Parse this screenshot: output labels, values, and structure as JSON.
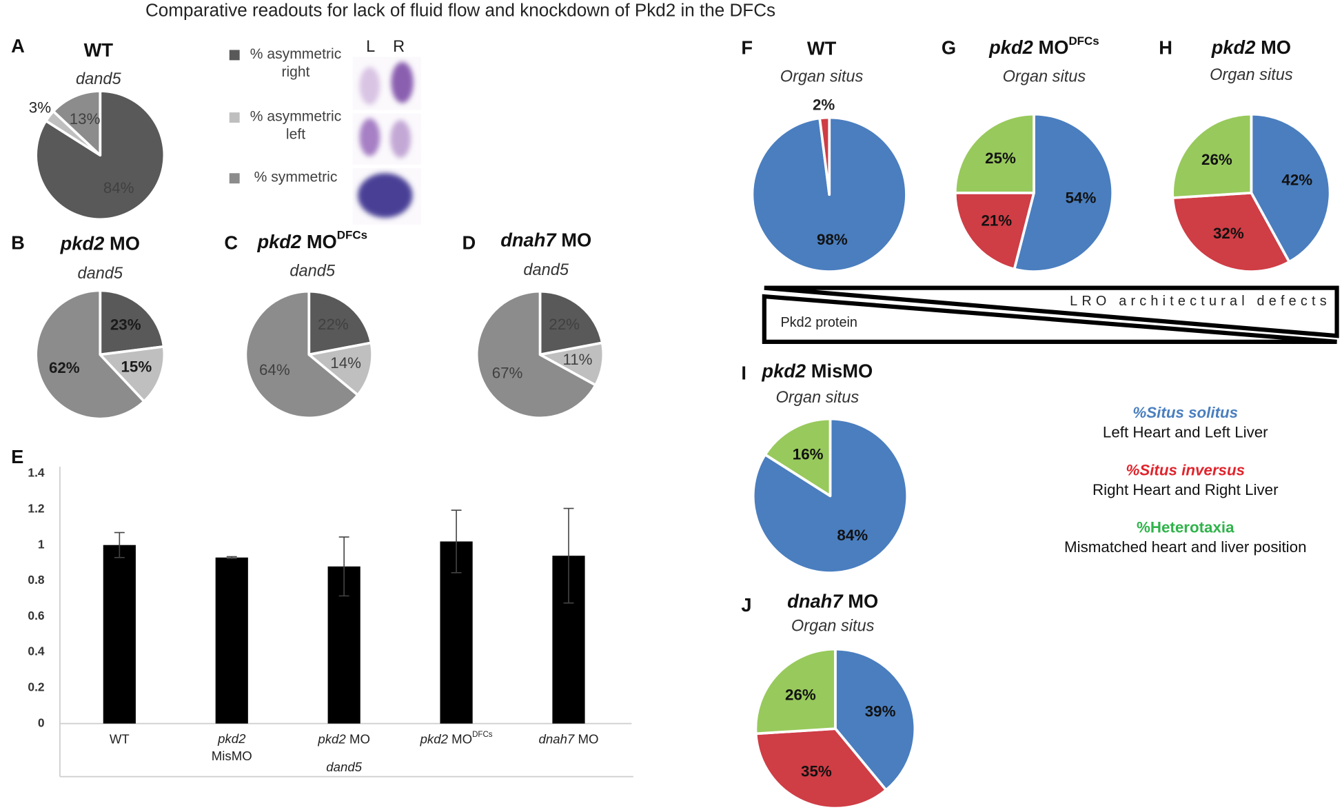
{
  "title": "Comparative readouts for lack of fluid flow and knockdown of Pkd2 in the DFCs",
  "chart_data": [
    {
      "type": "pie",
      "panel": "A",
      "title": {
        "plain": "WT"
      },
      "subtitle": "dand5",
      "values": [
        84,
        3,
        13
      ],
      "value_labels": [
        "84%",
        "3%",
        "13%"
      ],
      "colors": [
        "#595959",
        "#bfbfbf",
        "#8c8c8c"
      ],
      "bold_labels": false,
      "legend": [
        {
          "name": "% asymmetric right",
          "color": "#595959"
        },
        {
          "name": "% asymmetric left",
          "color": "#bfbfbf"
        },
        {
          "name": "% symmetric",
          "color": "#8c8c8c"
        }
      ]
    },
    {
      "type": "pie",
      "panel": "B",
      "title": {
        "italic": "pkd2",
        "plain": "MO"
      },
      "subtitle": "dand5",
      "values": [
        23,
        15,
        62
      ],
      "value_labels": [
        "23%",
        "15%",
        "62%"
      ],
      "colors": [
        "#595959",
        "#bfbfbf",
        "#8c8c8c"
      ],
      "bold_labels": true
    },
    {
      "type": "pie",
      "panel": "C",
      "title": {
        "italic": "pkd2",
        "plain": "MO",
        "sup": "DFCs"
      },
      "subtitle": "dand5",
      "values": [
        22,
        14,
        64
      ],
      "value_labels": [
        "22%",
        "14%",
        "64%"
      ],
      "colors": [
        "#595959",
        "#bfbfbf",
        "#8c8c8c"
      ],
      "bold_labels": false
    },
    {
      "type": "pie",
      "panel": "D",
      "title": {
        "italic": "dnah7",
        "plain": "MO"
      },
      "subtitle": "dand5",
      "values": [
        22,
        11,
        67
      ],
      "value_labels": [
        "22%",
        "11%",
        "67%"
      ],
      "colors": [
        "#595959",
        "#bfbfbf",
        "#8c8c8c"
      ],
      "bold_labels": false
    },
    {
      "type": "bar",
      "panel": "E",
      "categories": [
        {
          "plain": "WT"
        },
        {
          "italic": "pkd2",
          "plain": "MisMO"
        },
        {
          "italic": "pkd2",
          "plain": "MO"
        },
        {
          "italic": "pkd2",
          "plain": "MO",
          "sup": "DFCs"
        },
        {
          "italic": "dnah7",
          "plain": "MO"
        }
      ],
      "values": [
        1.0,
        0.93,
        0.88,
        1.02,
        0.94
      ],
      "errors": [
        0.07,
        0.005,
        0.165,
        0.175,
        0.265
      ],
      "color": "#000000",
      "xlabel": "dand5",
      "ylim": [
        0,
        1.4
      ],
      "yticks": [
        0,
        0.2,
        0.4,
        0.6,
        0.8,
        1,
        1.2,
        1.4
      ]
    },
    {
      "type": "pie",
      "panel": "F",
      "title": {
        "plain": "WT"
      },
      "subtitle": "Organ situs",
      "values": [
        98,
        2
      ],
      "value_labels": [
        "98%",
        "2%"
      ],
      "colors": [
        "#4a7ebf",
        "#cf3d45"
      ],
      "bold_labels": true
    },
    {
      "type": "pie",
      "panel": "G",
      "title": {
        "italic": "pkd2",
        "plain": "MO",
        "sup": "DFCs"
      },
      "subtitle": "Organ situs",
      "values": [
        54,
        21,
        25
      ],
      "value_labels": [
        "54%",
        "21%",
        "25%"
      ],
      "colors": [
        "#4a7ebf",
        "#cf3d45",
        "#98c95c"
      ],
      "bold_labels": true
    },
    {
      "type": "pie",
      "panel": "H",
      "title": {
        "italic": "pkd2",
        "plain": "MO"
      },
      "subtitle": "Organ situs",
      "values": [
        42,
        32,
        26
      ],
      "value_labels": [
        "42%",
        "32%",
        "26%"
      ],
      "colors": [
        "#4a7ebf",
        "#cf3d45",
        "#98c95c"
      ],
      "bold_labels": true
    },
    {
      "type": "pie",
      "panel": "I",
      "title": {
        "italic": "pkd2",
        "plain": "MisMO"
      },
      "subtitle": "Organ situs",
      "values": [
        84,
        16
      ],
      "value_labels": [
        "84%",
        "16%"
      ],
      "colors": [
        "#4a7ebf",
        "#98c95c"
      ],
      "bold_labels": true
    },
    {
      "type": "pie",
      "panel": "J",
      "title": {
        "italic": "dnah7",
        "plain": "MO"
      },
      "subtitle": "Organ situs",
      "values": [
        39,
        35,
        26
      ],
      "value_labels": [
        "39%",
        "35%",
        "26%"
      ],
      "colors": [
        "#4a7ebf",
        "#cf3d45",
        "#98c95c"
      ],
      "bold_labels": true
    }
  ],
  "legend_images": {
    "labels": [
      "L",
      "R"
    ]
  },
  "lro_diagram": {
    "top_label": "LRO architectural defects",
    "bottom_label": "Pkd2 protein"
  },
  "situs_legend": [
    {
      "name": "%Situs solitus",
      "description": "Left Heart and Left Liver",
      "color": "#4a7ebf",
      "italic": true
    },
    {
      "name": "%Situs inversus",
      "description": "Right Heart and Right Liver",
      "color": "#e0242c",
      "italic": true
    },
    {
      "name": "%Heterotaxia",
      "description": "Mismatched heart and liver position",
      "color": "#2fb34a",
      "italic": false
    }
  ]
}
